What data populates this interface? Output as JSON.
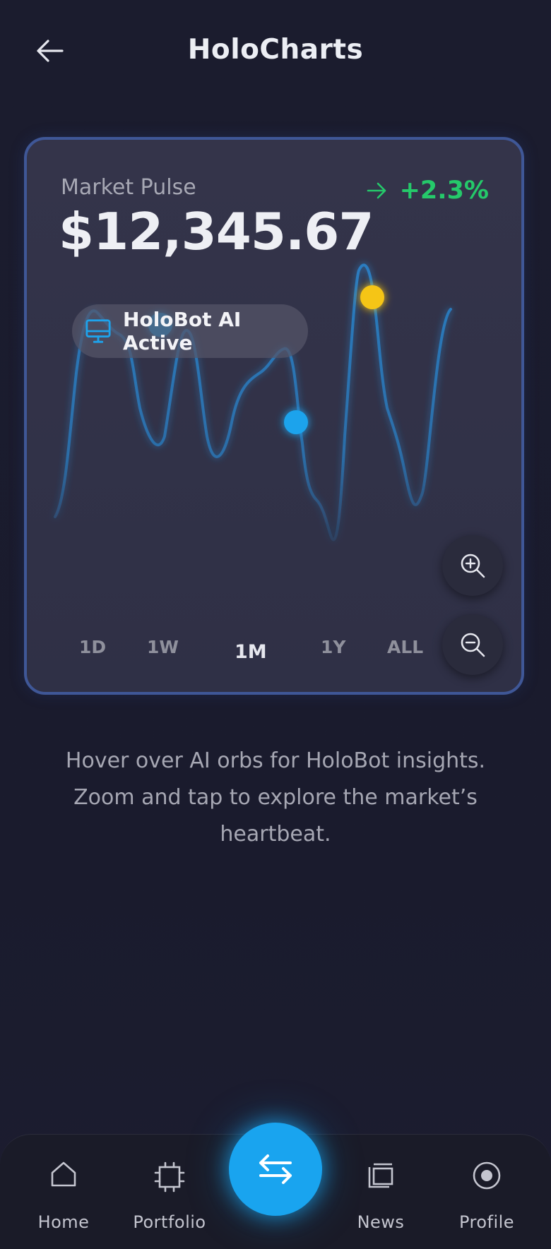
{
  "header": {
    "title": "HoloCharts",
    "back_icon": "arrow-left-icon"
  },
  "market": {
    "label": "Market Pulse",
    "price": "$12,345.67",
    "change": "+2.3%",
    "change_icon": "arrow-right-icon",
    "change_color": "#25c96a"
  },
  "holobot": {
    "label": "HoloBot AI Active",
    "icon": "monitor-icon",
    "icon_color": "#1ea3ec"
  },
  "ranges": [
    {
      "label": "1D",
      "active": false
    },
    {
      "label": "1W",
      "active": false
    },
    {
      "label": "1M",
      "active": true
    },
    {
      "label": "1Y",
      "active": false
    },
    {
      "label": "ALL",
      "active": false
    }
  ],
  "zoom": {
    "in_icon": "zoom-in-icon",
    "out_icon": "zoom-out-icon"
  },
  "orbs": [
    {
      "name": "ai-orb-1",
      "color": "#1ea3ec"
    },
    {
      "name": "ai-orb-2",
      "color": "#1ea3ec"
    },
    {
      "name": "ai-orb-3",
      "color": "#f5c518"
    }
  ],
  "hint": {
    "text": "Hover over AI orbs for HoloBot insights. Zoom and tap to explore the market’s heartbeat."
  },
  "nav": {
    "items": [
      {
        "label": "Home",
        "icon": "home-icon"
      },
      {
        "label": "Portfolio",
        "icon": "chip-icon"
      },
      {
        "label": "News",
        "icon": "news-icon"
      },
      {
        "label": "Profile",
        "icon": "profile-icon"
      }
    ],
    "fab_icon": "swap-arrows-icon",
    "fab_color": "#19a4ef"
  },
  "colors": {
    "accent": "#19a4ef",
    "background": "#1b1c2e",
    "card_border": "#3f5797",
    "line": "#2a7fc4"
  }
}
